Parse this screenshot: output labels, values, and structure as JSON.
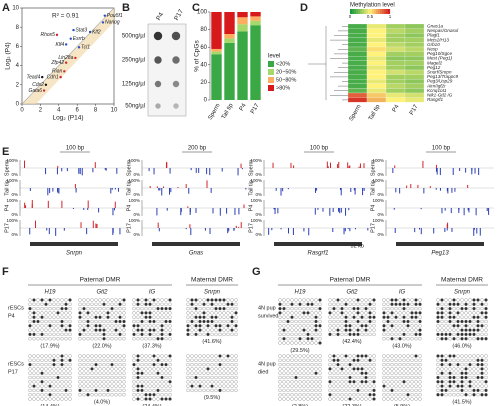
{
  "panels": {
    "letters": [
      "A",
      "B",
      "C",
      "D",
      "E",
      "F",
      "G"
    ]
  },
  "chart_data": [
    {
      "type": "scatter",
      "annotation": "R² = 0.91",
      "xlabel": "Log₂ (P14)",
      "ylabel": "Log₂ (P4)",
      "xlim": [
        0,
        10
      ],
      "ylim": [
        0,
        10
      ],
      "xticks": [
        0,
        2,
        4,
        6,
        8,
        10
      ],
      "yticks": [
        0,
        2,
        4,
        6,
        8,
        10
      ],
      "points": [
        {
          "label": "Pou5f1",
          "x": 9.0,
          "y": 9.2,
          "color": "#2b4fc4"
        },
        {
          "label": "Nanog",
          "x": 8.8,
          "y": 8.5,
          "color": "#2b4fc4"
        },
        {
          "label": "Rhox5",
          "x": 3.8,
          "y": 7.2,
          "color": "#d2252b"
        },
        {
          "label": "Stat3",
          "x": 5.6,
          "y": 7.7,
          "color": "#2b4fc4"
        },
        {
          "label": "Klf2",
          "x": 7.4,
          "y": 7.5,
          "color": "#2b4fc4"
        },
        {
          "label": "Esrrb",
          "x": 5.3,
          "y": 6.8,
          "color": "#2b4fc4"
        },
        {
          "label": "Klf4",
          "x": 4.8,
          "y": 6.2,
          "color": "#2b4fc4"
        },
        {
          "label": "Tcl1",
          "x": 6.2,
          "y": 5.9,
          "color": "#2b4fc4"
        },
        {
          "label": "Lin28a",
          "x": 5.8,
          "y": 4.8,
          "color": "#d2252b"
        },
        {
          "label": "Zfp42",
          "x": 4.8,
          "y": 4.3,
          "color": "#d2252b"
        },
        {
          "label": "Rian",
          "x": 4.6,
          "y": 3.4,
          "color": "#d2252b"
        },
        {
          "label": "Cdh1",
          "x": 4.2,
          "y": 2.8,
          "color": "#d2252b"
        },
        {
          "label": "Tead4",
          "x": 2.2,
          "y": 2.8,
          "color": "#111111"
        },
        {
          "label": "Cdx2",
          "x": 2.6,
          "y": 2.0,
          "color": "#111111"
        },
        {
          "label": "Gata6",
          "x": 2.4,
          "y": 1.4,
          "color": "#d2252b"
        }
      ]
    },
    {
      "type": "bar",
      "stacked": true,
      "ylabel": "% of CpGs",
      "legend_title": "level",
      "categories": [
        "Sperm",
        "Tail tip",
        "P4",
        "P17"
      ],
      "ylim": [
        0,
        100
      ],
      "yticks": [
        0,
        20,
        40,
        60,
        80,
        100
      ],
      "series": [
        {
          "name": "<20%",
          "color": "#3aa845",
          "values": [
            52,
            65,
            78,
            85
          ]
        },
        {
          "name": "20~50%",
          "color": "#a6d96a",
          "values": [
            3,
            5,
            8,
            5
          ]
        },
        {
          "name": "50~80%",
          "color": "#fdae61",
          "values": [
            3,
            5,
            8,
            5
          ]
        },
        {
          "name": ">80%",
          "color": "#d7191c",
          "values": [
            42,
            25,
            6,
            5
          ]
        }
      ]
    },
    {
      "type": "heatmap",
      "title": "Methylation level",
      "colors": [
        "#1a9a3c",
        "#fff27a",
        "#d42020"
      ],
      "colorbar_ticks": [
        0,
        0.5,
        1
      ],
      "columns": [
        "Sperm",
        "Tail tip",
        "P4",
        "P17"
      ],
      "rows": [
        "Gnas1a",
        "Nespas/Gnasxl",
        "Plagl1",
        "Mcts2/H13",
        "Grb10",
        "Nesp",
        "Peg10/Sgce",
        "Mest (Peg1)",
        "Magel2",
        "Peg12",
        "Snurf/Snrpn",
        "Peg13/Trappc9",
        "Peg3/Usp29",
        "Airn/Igf2r",
        "Kcnq1ot1",
        "Nik1-Gtl2 IG",
        "Rasgrf1"
      ],
      "values": [
        [
          0.1,
          0.45,
          0.3,
          0.25
        ],
        [
          0.1,
          0.5,
          0.35,
          0.3
        ],
        [
          0.1,
          0.5,
          0.3,
          0.25
        ],
        [
          0.1,
          0.45,
          0.3,
          0.3
        ],
        [
          0.1,
          0.5,
          0.35,
          0.3
        ],
        [
          0.15,
          0.55,
          0.4,
          0.35
        ],
        [
          0.1,
          0.5,
          0.3,
          0.3
        ],
        [
          0.1,
          0.45,
          0.25,
          0.25
        ],
        [
          0.1,
          0.5,
          0.3,
          0.3
        ],
        [
          0.1,
          0.45,
          0.3,
          0.25
        ],
        [
          0.1,
          0.5,
          0.4,
          0.35
        ],
        [
          0.1,
          0.5,
          0.3,
          0.3
        ],
        [
          0.1,
          0.45,
          0.3,
          0.25
        ],
        [
          0.1,
          0.5,
          0.35,
          0.3
        ],
        [
          0.15,
          0.45,
          0.3,
          0.25
        ],
        [
          0.85,
          0.6,
          0.45,
          0.4
        ],
        [
          0.95,
          0.65,
          0.5,
          0.45
        ]
      ]
    }
  ],
  "panel_b": {
    "columns": [
      "P4",
      "P17"
    ],
    "rows": [
      "500ng/µl",
      "250ng/µl",
      "125ng/µl",
      "50ng/µl"
    ]
  },
  "panel_e": {
    "rows": [
      "Sperm",
      "Tail tip",
      "P4",
      "P17"
    ],
    "track_ticks": [
      "100%",
      "0%"
    ],
    "tracks": [
      {
        "scale": "100 bp",
        "gene": "Snrpn"
      },
      {
        "scale": "200 bp",
        "gene": "Gnas"
      },
      {
        "scale": "100 bp",
        "gene": "Rasgrf1",
        "note": "32 kb"
      },
      {
        "scale": "100 bp",
        "gene": "Peg13"
      }
    ]
  },
  "panel_f": {
    "paternal": "Paternal DMR",
    "maternal": "Maternal DMR",
    "genes": [
      "H19",
      "Gtl2",
      "IG",
      "Snrpn"
    ],
    "rows": [
      {
        "label": [
          "rESCs",
          "P4"
        ],
        "percents": [
          "(17.9%)",
          "(22.0%)",
          "(37.3%)",
          "(41.6%)"
        ]
      },
      {
        "label": [
          "rESCs",
          "P17"
        ],
        "percents": [
          "(14.4%)",
          "(4.0%)",
          "(24.4%)",
          "(9.5%)"
        ]
      }
    ]
  },
  "panel_g": {
    "paternal": "Paternal DMR",
    "maternal": "Maternal DMR",
    "genes": [
      "H19",
      "Gtl2",
      "IG",
      "Snrpn"
    ],
    "rows": [
      {
        "label": [
          "4N pup",
          "survived"
        ],
        "percents": [
          "(29.5%)",
          "(42.4%)",
          "(43.0%)",
          "(46.0%)"
        ]
      },
      {
        "label": [
          "4N pup",
          "died"
        ],
        "percents": [
          "(2.8%)",
          "(22.3%)",
          "(5.9%)",
          "(41.5%)"
        ]
      }
    ]
  }
}
